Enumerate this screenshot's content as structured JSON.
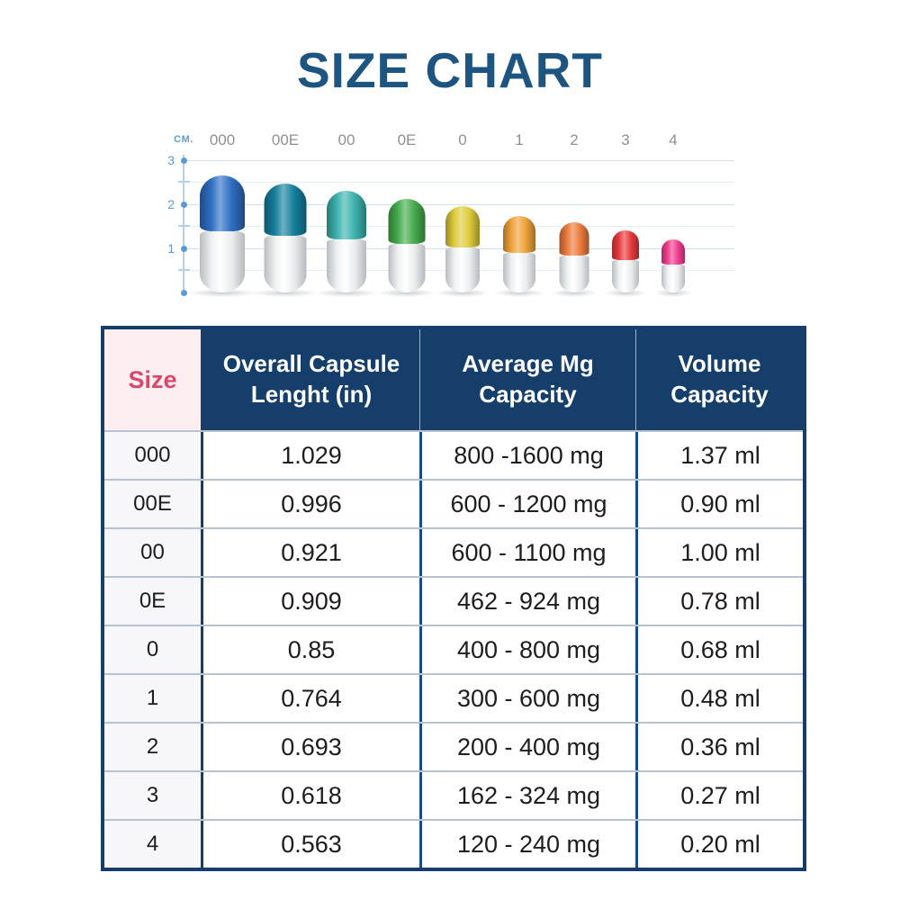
{
  "title": "SIZE CHART",
  "colors": {
    "title_blue": "#1d5480",
    "navy": "#163e6a",
    "size_header_bg": "#fdeef2",
    "size_header_text": "#d9476b",
    "size_col_bg": "#f7f7fb",
    "row_divider": "#b7c3d1",
    "header_separator": "#9fb2c8",
    "column_separator": "#1d4a7a",
    "axis_blue": "#5b9bd5",
    "axis_light": "#b4cfe9",
    "grid_int": "#cfe1f2",
    "grid_half": "#e6eff8",
    "label_gray": "#8d9196"
  },
  "capsule_chart": {
    "unit_label": "CM.",
    "axis_ticks": [
      "3",
      "2",
      "1"
    ],
    "capsules": [
      {
        "label": "000",
        "color": "#2f6fc3",
        "height_cm": 2.63
      },
      {
        "label": "00E",
        "color": "#15809e",
        "height_cm": 2.45
      },
      {
        "label": "00",
        "color": "#3db3ae",
        "height_cm": 2.29
      },
      {
        "label": "0E",
        "color": "#46ab4d",
        "height_cm": 2.11
      },
      {
        "label": "0",
        "color": "#dfcb3c",
        "height_cm": 1.95
      },
      {
        "label": "1",
        "color": "#f0a23b",
        "height_cm": 1.73
      },
      {
        "label": "2",
        "color": "#ec7b3e",
        "height_cm": 1.58
      },
      {
        "label": "3",
        "color": "#e73c3f",
        "height_cm": 1.4
      },
      {
        "label": "4",
        "color": "#f23e90",
        "height_cm": 1.2
      }
    ]
  },
  "table": {
    "headers": [
      "Size",
      "Overall Capsule Lenght (in)",
      "Average Mg Capacity",
      "Volume Capacity"
    ],
    "rows": [
      [
        "000",
        "1.029",
        "800 -1600 mg",
        "1.37 ml"
      ],
      [
        "00E",
        "0.996",
        "600 - 1200 mg",
        "0.90 ml"
      ],
      [
        "00",
        "0.921",
        "600 - 1100 mg",
        "1.00 ml"
      ],
      [
        "0E",
        "0.909",
        "462 - 924 mg",
        "0.78 ml"
      ],
      [
        "0",
        "0.85",
        "400 - 800 mg",
        "0.68 ml"
      ],
      [
        "1",
        "0.764",
        "300 - 600 mg",
        "0.48 ml"
      ],
      [
        "2",
        "0.693",
        "200 - 400 mg",
        "0.36 ml"
      ],
      [
        "3",
        "0.618",
        "162 - 324 mg",
        "0.27 ml"
      ],
      [
        "4",
        "0.563",
        "120 - 240 mg",
        "0.20 ml"
      ]
    ]
  },
  "chart_data": [
    {
      "type": "bar",
      "title": "Capsule size pictogram",
      "categories": [
        "000",
        "00E",
        "00",
        "0E",
        "0",
        "1",
        "2",
        "3",
        "4"
      ],
      "values": [
        2.63,
        2.45,
        2.29,
        2.11,
        1.95,
        1.73,
        1.58,
        1.4,
        1.2
      ],
      "xlabel": "",
      "ylabel": "CM.",
      "ylim": [
        0,
        3
      ],
      "yticks": [
        1,
        2,
        3
      ],
      "grid": true,
      "legend": false
    },
    {
      "type": "table",
      "title": "SIZE CHART",
      "columns": [
        "Size",
        "Overall Capsule Lenght (in)",
        "Average Mg Capacity",
        "Volume Capacity"
      ],
      "rows": [
        [
          "000",
          "1.029",
          "800 -1600 mg",
          "1.37 ml"
        ],
        [
          "00E",
          "0.996",
          "600 - 1200 mg",
          "0.90 ml"
        ],
        [
          "00",
          "0.921",
          "600 - 1100 mg",
          "1.00 ml"
        ],
        [
          "0E",
          "0.909",
          "462 - 924 mg",
          "0.78 ml"
        ],
        [
          "0",
          "0.85",
          "400 - 800 mg",
          "0.68 ml"
        ],
        [
          "1",
          "0.764",
          "300 - 600 mg",
          "0.48 ml"
        ],
        [
          "2",
          "0.693",
          "200 - 400 mg",
          "0.36 ml"
        ],
        [
          "3",
          "0.618",
          "162 - 324 mg",
          "0.27 ml"
        ],
        [
          "4",
          "0.563",
          "120 - 240 mg",
          "0.20 ml"
        ]
      ]
    }
  ]
}
